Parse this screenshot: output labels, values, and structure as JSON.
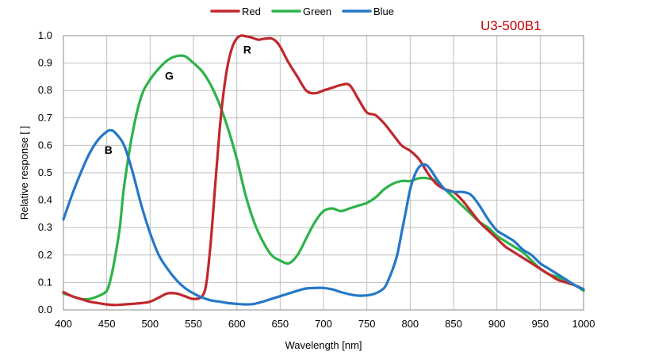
{
  "model_label": "U3-500B1",
  "model_label_color": "#c00000",
  "chart_data": {
    "type": "line",
    "xlabel": "Wavelength [nm]",
    "ylabel": "Relative response [ ]",
    "xlim": [
      400,
      1000
    ],
    "ylim": [
      0,
      1.0
    ],
    "x_ticks": [
      400,
      450,
      500,
      550,
      600,
      650,
      700,
      750,
      800,
      850,
      900,
      950,
      1000
    ],
    "y_ticks": [
      0.0,
      0.1,
      0.2,
      0.3,
      0.4,
      0.5,
      0.6,
      0.7,
      0.8,
      0.9,
      1.0
    ],
    "x_tick_labels": [
      "400",
      "450",
      "500",
      "550",
      "600",
      "650",
      "700",
      "750",
      "800",
      "850",
      "900",
      "950",
      "1000"
    ],
    "y_tick_labels": [
      "0.0",
      "0.1",
      "0.2",
      "0.3",
      "0.4",
      "0.5",
      "0.6",
      "0.7",
      "0.8",
      "0.9",
      "1.0"
    ],
    "grid": true,
    "legend_position": "top-center",
    "series": [
      {
        "name": "Red",
        "color": "#c0282d",
        "label": "R",
        "label_at": [
          612,
          0.935
        ],
        "x": [
          400,
          410,
          420,
          430,
          440,
          450,
          460,
          470,
          480,
          490,
          500,
          510,
          520,
          530,
          540,
          550,
          560,
          565,
          570,
          575,
          580,
          585,
          590,
          595,
          600,
          605,
          610,
          615,
          620,
          625,
          630,
          635,
          640,
          645,
          650,
          660,
          670,
          680,
          690,
          700,
          710,
          720,
          730,
          740,
          750,
          760,
          770,
          780,
          790,
          800,
          810,
          820,
          830,
          840,
          850,
          860,
          870,
          880,
          890,
          900,
          910,
          920,
          930,
          940,
          950,
          960,
          970,
          980,
          990,
          1000
        ],
        "y": [
          0.065,
          0.05,
          0.04,
          0.03,
          0.025,
          0.02,
          0.018,
          0.02,
          0.022,
          0.025,
          0.03,
          0.045,
          0.06,
          0.06,
          0.05,
          0.04,
          0.05,
          0.1,
          0.25,
          0.45,
          0.65,
          0.8,
          0.9,
          0.96,
          0.99,
          1.0,
          0.998,
          0.995,
          0.99,
          0.985,
          0.988,
          0.99,
          0.99,
          0.98,
          0.96,
          0.9,
          0.85,
          0.8,
          0.79,
          0.8,
          0.81,
          0.82,
          0.82,
          0.77,
          0.72,
          0.71,
          0.68,
          0.64,
          0.6,
          0.58,
          0.55,
          0.5,
          0.46,
          0.44,
          0.43,
          0.4,
          0.36,
          0.32,
          0.29,
          0.26,
          0.23,
          0.21,
          0.19,
          0.17,
          0.15,
          0.13,
          0.11,
          0.1,
          0.09,
          0.075
        ]
      },
      {
        "name": "Green",
        "color": "#2db34a",
        "label": "G",
        "label_at": [
          522,
          0.84
        ],
        "x": [
          400,
          410,
          420,
          430,
          440,
          450,
          455,
          460,
          465,
          470,
          480,
          490,
          500,
          510,
          520,
          530,
          540,
          550,
          560,
          570,
          580,
          590,
          600,
          610,
          620,
          630,
          640,
          650,
          660,
          670,
          680,
          690,
          700,
          710,
          720,
          730,
          740,
          750,
          760,
          770,
          780,
          790,
          800,
          810,
          820,
          830,
          840,
          850,
          860,
          870,
          880,
          890,
          900,
          910,
          920,
          930,
          940,
          950,
          960,
          970,
          980,
          990,
          1000
        ],
        "y": [
          0.06,
          0.05,
          0.04,
          0.04,
          0.05,
          0.07,
          0.12,
          0.2,
          0.3,
          0.45,
          0.65,
          0.78,
          0.84,
          0.88,
          0.91,
          0.925,
          0.925,
          0.9,
          0.87,
          0.82,
          0.75,
          0.66,
          0.55,
          0.42,
          0.32,
          0.25,
          0.2,
          0.18,
          0.17,
          0.2,
          0.26,
          0.32,
          0.36,
          0.37,
          0.36,
          0.37,
          0.38,
          0.39,
          0.41,
          0.44,
          0.46,
          0.47,
          0.47,
          0.48,
          0.48,
          0.47,
          0.44,
          0.41,
          0.38,
          0.35,
          0.32,
          0.3,
          0.27,
          0.25,
          0.23,
          0.21,
          0.18,
          0.15,
          0.13,
          0.12,
          0.1,
          0.09,
          0.07
        ]
      },
      {
        "name": "Blue",
        "color": "#2478c8",
        "label": "B",
        "label_at": [
          452,
          0.57
        ],
        "x": [
          400,
          410,
          420,
          430,
          440,
          450,
          455,
          460,
          470,
          480,
          490,
          500,
          510,
          520,
          530,
          540,
          550,
          560,
          570,
          580,
          590,
          600,
          610,
          620,
          630,
          640,
          650,
          660,
          670,
          680,
          690,
          700,
          710,
          720,
          730,
          740,
          750,
          760,
          770,
          775,
          780,
          785,
          790,
          795,
          800,
          805,
          810,
          815,
          820,
          825,
          830,
          840,
          850,
          860,
          870,
          880,
          890,
          900,
          910,
          920,
          930,
          940,
          950,
          960,
          970,
          980,
          990,
          1000
        ],
        "y": [
          0.33,
          0.42,
          0.5,
          0.57,
          0.62,
          0.65,
          0.655,
          0.645,
          0.6,
          0.5,
          0.38,
          0.28,
          0.2,
          0.15,
          0.11,
          0.08,
          0.06,
          0.045,
          0.035,
          0.03,
          0.025,
          0.022,
          0.02,
          0.022,
          0.03,
          0.04,
          0.05,
          0.06,
          0.07,
          0.078,
          0.08,
          0.08,
          0.075,
          0.065,
          0.057,
          0.052,
          0.053,
          0.06,
          0.08,
          0.11,
          0.15,
          0.2,
          0.28,
          0.36,
          0.44,
          0.49,
          0.52,
          0.53,
          0.525,
          0.505,
          0.48,
          0.44,
          0.43,
          0.43,
          0.42,
          0.38,
          0.33,
          0.29,
          0.27,
          0.25,
          0.22,
          0.2,
          0.17,
          0.15,
          0.13,
          0.11,
          0.09,
          0.075
        ]
      }
    ]
  }
}
